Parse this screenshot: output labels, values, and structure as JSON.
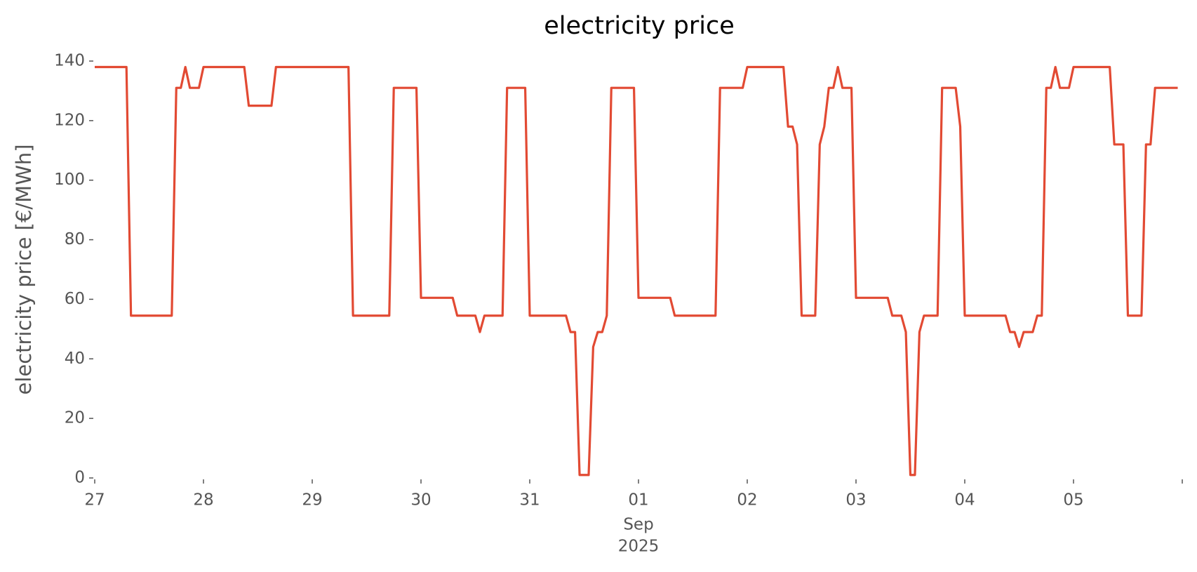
{
  "chart_data": {
    "type": "line",
    "title": "electricity price",
    "ylabel": "electricity price [€/MWh]",
    "color": "#e24a33",
    "x": [
      "2025-08-27 00:00",
      "2025-08-27 07:00",
      "2025-08-27 08:00",
      "2025-08-27 17:00",
      "2025-08-27 18:00",
      "2025-08-27 19:00",
      "2025-08-27 20:00",
      "2025-08-27 21:00",
      "2025-08-27 23:00",
      "2025-08-28 00:00",
      "2025-08-28 09:00",
      "2025-08-28 10:00",
      "2025-08-28 15:00",
      "2025-08-28 16:00",
      "2025-08-29 08:00",
      "2025-08-29 09:00",
      "2025-08-29 17:00",
      "2025-08-29 18:00",
      "2025-08-29 23:00",
      "2025-08-30 00:00",
      "2025-08-30 07:00",
      "2025-08-30 08:00",
      "2025-08-30 12:00",
      "2025-08-30 13:00",
      "2025-08-30 14:00",
      "2025-08-30 18:00",
      "2025-08-30 19:00",
      "2025-08-30 23:00",
      "2025-08-31 00:00",
      "2025-08-31 08:00",
      "2025-08-31 09:00",
      "2025-08-31 10:00",
      "2025-08-31 11:00",
      "2025-08-31 13:00",
      "2025-08-31 14:00",
      "2025-08-31 15:00",
      "2025-08-31 16:00",
      "2025-08-31 17:00",
      "2025-08-31 18:00",
      "2025-08-31 23:00",
      "2025-09-01 00:00",
      "2025-09-01 07:00",
      "2025-09-01 08:00",
      "2025-09-01 17:00",
      "2025-09-01 18:00",
      "2025-09-01 23:00",
      "2025-09-02 00:00",
      "2025-09-02 08:00",
      "2025-09-02 09:00",
      "2025-09-02 10:00",
      "2025-09-02 11:00",
      "2025-09-02 12:00",
      "2025-09-02 15:00",
      "2025-09-02 16:00",
      "2025-09-02 17:00",
      "2025-09-02 18:00",
      "2025-09-02 19:00",
      "2025-09-02 20:00",
      "2025-09-02 21:00",
      "2025-09-02 23:00",
      "2025-09-03 00:00",
      "2025-09-03 07:00",
      "2025-09-03 08:00",
      "2025-09-03 10:00",
      "2025-09-03 11:00",
      "2025-09-03 12:00",
      "2025-09-03 13:00",
      "2025-09-03 14:00",
      "2025-09-03 15:00",
      "2025-09-03 18:00",
      "2025-09-03 19:00",
      "2025-09-03 22:00",
      "2025-09-03 23:00",
      "2025-09-04 00:00",
      "2025-09-04 09:00",
      "2025-09-04 10:00",
      "2025-09-04 11:00",
      "2025-09-04 12:00",
      "2025-09-04 13:00",
      "2025-09-04 15:00",
      "2025-09-04 16:00",
      "2025-09-04 17:00",
      "2025-09-04 18:00",
      "2025-09-04 19:00",
      "2025-09-04 20:00",
      "2025-09-04 21:00",
      "2025-09-04 23:00",
      "2025-09-05 00:00",
      "2025-09-05 08:00",
      "2025-09-05 09:00",
      "2025-09-05 11:00",
      "2025-09-05 12:00",
      "2025-09-05 15:00",
      "2025-09-05 16:00",
      "2025-09-05 17:00",
      "2025-09-05 18:00",
      "2025-09-05 23:00"
    ],
    "values": [
      138,
      138,
      54.5,
      54.5,
      131,
      131,
      138,
      131,
      131,
      138,
      138,
      125,
      125,
      138,
      138,
      54.5,
      54.5,
      131,
      131,
      60.5,
      60.5,
      54.5,
      54.5,
      49,
      54.5,
      54.5,
      131,
      131,
      54.5,
      54.5,
      49,
      49,
      1,
      1,
      44,
      49,
      49,
      54.5,
      131,
      131,
      60.5,
      60.5,
      54.5,
      54.5,
      131,
      131,
      138,
      138,
      118,
      118,
      112,
      54.5,
      54.5,
      112,
      118,
      131,
      131,
      138,
      131,
      131,
      60.5,
      60.5,
      54.5,
      54.5,
      49,
      1,
      1,
      49,
      54.5,
      54.5,
      131,
      131,
      118,
      54.5,
      54.5,
      49,
      49,
      44,
      49,
      49,
      54.5,
      54.5,
      131,
      131,
      138,
      131,
      131,
      138,
      138,
      112,
      112,
      54.5,
      54.5,
      112,
      112,
      131,
      131
    ],
    "xlim": [
      "2025-08-27 00:00",
      "2025-09-06 00:00"
    ],
    "xticks": [
      {
        "value": "2025-08-27",
        "label": "27"
      },
      {
        "value": "2025-08-28",
        "label": "28"
      },
      {
        "value": "2025-08-29",
        "label": "29"
      },
      {
        "value": "2025-08-30",
        "label": "30"
      },
      {
        "value": "2025-08-31",
        "label": "31"
      },
      {
        "value": "2025-09-01",
        "label": "01"
      },
      {
        "value": "2025-09-02",
        "label": "02"
      },
      {
        "value": "2025-09-03",
        "label": "03"
      },
      {
        "value": "2025-09-04",
        "label": "04"
      },
      {
        "value": "2025-09-05",
        "label": "05"
      },
      {
        "value": "2025-09-06",
        "label": ""
      }
    ],
    "xtick_sublabels": [
      "Sep",
      "2025"
    ],
    "ylim": [
      0,
      140
    ],
    "yticks": [
      0,
      20,
      40,
      60,
      80,
      100,
      120,
      140
    ],
    "grid": false
  }
}
